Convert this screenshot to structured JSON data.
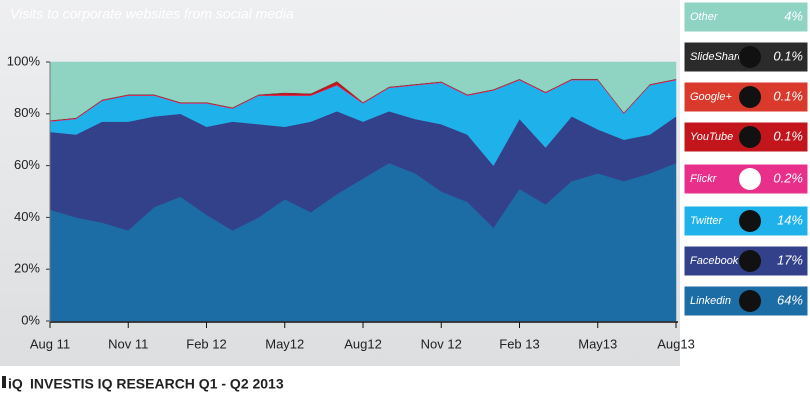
{
  "chart_data": {
    "type": "stacked_area",
    "title": "Visits to corporate websites from social media",
    "source": "INVESTIS IQ RESEARCH Q1 - Q2 2013",
    "logo": "iQ",
    "categories": [
      "Aug 11",
      null,
      null,
      "Nov 11",
      null,
      null,
      "Feb 12",
      null,
      null,
      "May12",
      null,
      null,
      "Aug12",
      null,
      null,
      "Nov 12",
      null,
      null,
      "Feb 13",
      null,
      null,
      "May13",
      null,
      null,
      "Aug13"
    ],
    "ylim": [
      0,
      100
    ],
    "yticks": [
      {
        "value": 0,
        "label": "0%"
      },
      {
        "value": 20,
        "label": "20%"
      },
      {
        "value": 40,
        "label": "40%"
      },
      {
        "value": 60,
        "label": "60%"
      },
      {
        "value": 80,
        "label": "80%"
      },
      {
        "value": 100,
        "label": "100%"
      }
    ],
    "series": [
      {
        "name": "Linkedin",
        "share": "64%",
        "color": "#1c6ca6",
        "values": [
          43,
          40,
          38,
          35,
          44,
          48,
          41,
          35,
          40,
          47,
          42,
          49,
          55,
          61,
          57,
          50,
          46,
          36,
          51,
          45,
          54,
          57,
          54,
          57,
          61
        ]
      },
      {
        "name": "Facebook",
        "share": "17%",
        "color": "#33418a",
        "values": [
          30,
          32,
          39,
          42,
          35,
          32,
          34,
          42,
          36,
          28,
          35,
          32,
          22,
          20,
          21,
          26,
          26,
          24,
          27,
          22,
          25,
          17,
          16,
          15,
          18
        ]
      },
      {
        "name": "Twitter",
        "share": "14%",
        "color": "#1fb2ea",
        "values": [
          4,
          6,
          8,
          10,
          8,
          4,
          9,
          5,
          11,
          12,
          10,
          10,
          7,
          9,
          13,
          16,
          15,
          29,
          15,
          21,
          14,
          19,
          10,
          19,
          14
        ]
      },
      {
        "name": "Flickr",
        "share": "0.2%",
        "color": "#e8308a",
        "values": [
          0.2,
          0.2,
          0.2,
          0.2,
          0.2,
          0.2,
          0.2,
          0.2,
          0.2,
          0.2,
          0.2,
          0.2,
          0.2,
          0.2,
          0.2,
          0.2,
          0.2,
          0.2,
          0.2,
          0.2,
          0.2,
          0.2,
          0.2,
          0.2,
          0.2
        ]
      },
      {
        "name": "YouTube",
        "share": "0.1%",
        "color": "#c3161c",
        "values": [
          0.1,
          0.1,
          0.1,
          0.1,
          0.1,
          0.1,
          0.1,
          0.1,
          0.1,
          0.8,
          0.5,
          1.2,
          0.1,
          0.1,
          0.1,
          0.1,
          0.1,
          0.1,
          0.1,
          0.1,
          0.1,
          0.1,
          0.1,
          0.1,
          0.1
        ]
      },
      {
        "name": "Google+",
        "share": "0.1%",
        "color": "#d93a2b",
        "values": [
          0.1,
          0.1,
          0.1,
          0.1,
          0.1,
          0.1,
          0.1,
          0.1,
          0.1,
          0.1,
          0.1,
          0.1,
          0.1,
          0.1,
          0.1,
          0.1,
          0.1,
          0.1,
          0.1,
          0.1,
          0.1,
          0.1,
          0.1,
          0.1,
          0.1
        ]
      },
      {
        "name": "SlideShare",
        "share": "0.1%",
        "color": "#2b2b2b",
        "values": [
          0.1,
          0.1,
          0.1,
          0.1,
          0.1,
          0.1,
          0.1,
          0.1,
          0.1,
          0.1,
          0.1,
          0.1,
          0.1,
          0.1,
          0.1,
          0.1,
          0.1,
          0.1,
          0.1,
          0.1,
          0.1,
          0.1,
          0.1,
          0.1,
          0.1
        ]
      },
      {
        "name": "Other",
        "share": "4%",
        "color": "#8fd3c3",
        "values": [
          22.5,
          21.5,
          14.5,
          12.5,
          12.5,
          15.5,
          15.5,
          17.5,
          12.5,
          11.8,
          12.1,
          7.4,
          15.5,
          9.5,
          8.5,
          7.5,
          12.5,
          10.5,
          6.5,
          11.5,
          6.5,
          6.5,
          19.5,
          8.5,
          6.5
        ]
      }
    ]
  }
}
